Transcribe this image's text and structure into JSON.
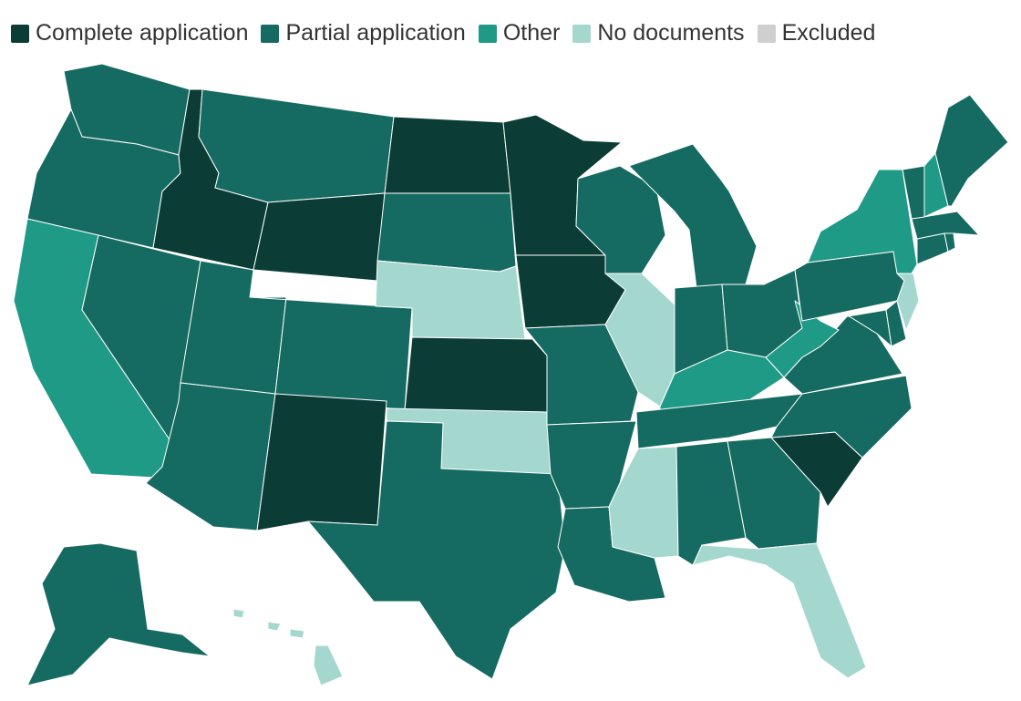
{
  "legend": [
    {
      "key": "complete",
      "label": "Complete application",
      "color": "#0b3d36"
    },
    {
      "key": "partial",
      "label": "Partial application",
      "color": "#156b61"
    },
    {
      "key": "other",
      "label": "Other",
      "color": "#1f9a86"
    },
    {
      "key": "none",
      "label": "No documents",
      "color": "#a4d8cf"
    },
    {
      "key": "excluded",
      "label": "Excluded",
      "color": "#cfcfcf"
    }
  ],
  "states": {
    "WA": "partial",
    "OR": "partial",
    "CA": "other",
    "ID": "complete",
    "NV": "partial",
    "MT": "partial",
    "WY": "complete",
    "UT": "partial",
    "AZ": "partial",
    "CO": "partial",
    "NM": "complete",
    "ND": "complete",
    "SD": "partial",
    "NE": "none",
    "KS": "complete",
    "OK": "none",
    "TX": "partial",
    "MN": "complete",
    "IA": "complete",
    "MO": "partial",
    "AR": "partial",
    "LA": "partial",
    "WI": "partial",
    "IL": "none",
    "MI": "partial",
    "IN": "partial",
    "OH": "partial",
    "KY": "other",
    "TN": "partial",
    "MS": "none",
    "AL": "partial",
    "GA": "partial",
    "FL": "none",
    "SC": "complete",
    "NC": "partial",
    "VA": "partial",
    "WV": "other",
    "PA": "partial",
    "NY": "other",
    "NJ": "none",
    "DE": "partial",
    "MD": "partial",
    "CT": "partial",
    "RI": "partial",
    "MA": "partial",
    "VT": "partial",
    "NH": "other",
    "ME": "partial",
    "AK": "partial",
    "HI": "none"
  }
}
